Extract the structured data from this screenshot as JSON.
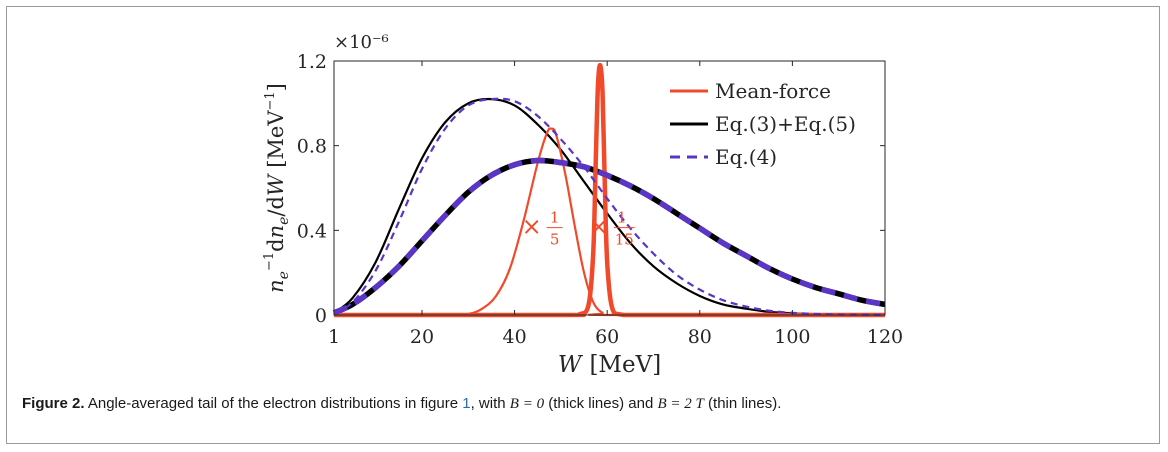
{
  "chart_data": {
    "type": "line",
    "xlabel_var": "W",
    "xlabel_unit": "[MeV]",
    "ylabel_text": "n_e^{-1} dn_e/dW [MeV^{-1}]",
    "yexponent": "×10⁻⁶",
    "xlim": [
      1,
      120
    ],
    "ylim": [
      0,
      1.2
    ],
    "xticks": [
      1,
      20,
      40,
      60,
      80,
      100,
      120
    ],
    "yticks": [
      0,
      0.4,
      0.8,
      1.2
    ],
    "legend": {
      "placement": "top-right",
      "entries": [
        "Mean-force",
        "Eq.(3)+Eq.(5)",
        "Eq.(4)"
      ]
    },
    "annotations": [
      {
        "text": "×",
        "num": "1",
        "den": "5",
        "x": 48,
        "y": 0.38,
        "color": "#f04a2a"
      },
      {
        "text": "×",
        "num": "1",
        "den": "15",
        "x": 62.5,
        "y": 0.38,
        "color": "#f04a2a"
      }
    ],
    "colors": {
      "mean_force": "#f04a2a",
      "eq35": "#000000",
      "eq4": "#5a35c6"
    },
    "x": [
      1,
      5,
      10,
      15,
      20,
      25,
      30,
      35,
      40,
      45,
      50,
      55,
      60,
      65,
      70,
      75,
      80,
      85,
      90,
      95,
      100,
      105,
      110,
      115,
      120
    ],
    "series": [
      {
        "name": "Eq.(3)+Eq.(5)",
        "condition": "B = 0",
        "width": "thick",
        "values": [
          0.01,
          0.05,
          0.13,
          0.23,
          0.35,
          0.47,
          0.58,
          0.66,
          0.71,
          0.73,
          0.72,
          0.7,
          0.66,
          0.61,
          0.55,
          0.48,
          0.41,
          0.34,
          0.28,
          0.22,
          0.17,
          0.13,
          0.1,
          0.07,
          0.05
        ]
      },
      {
        "name": "Eq.(4)",
        "condition": "B = 0",
        "width": "thick",
        "values": [
          0.01,
          0.05,
          0.13,
          0.23,
          0.35,
          0.47,
          0.58,
          0.66,
          0.71,
          0.73,
          0.72,
          0.7,
          0.66,
          0.61,
          0.55,
          0.48,
          0.41,
          0.34,
          0.28,
          0.22,
          0.17,
          0.13,
          0.1,
          0.07,
          0.05
        ]
      },
      {
        "name": "Eq.(3)+Eq.(5)",
        "condition": "B = 2 T",
        "width": "thin",
        "values": [
          0.01,
          0.08,
          0.25,
          0.5,
          0.74,
          0.91,
          1.0,
          1.02,
          0.99,
          0.9,
          0.78,
          0.63,
          0.48,
          0.34,
          0.23,
          0.15,
          0.09,
          0.05,
          0.03,
          0.015,
          0.008,
          0.004,
          0.002,
          0.001,
          0
        ]
      },
      {
        "name": "Eq.(4)",
        "condition": "B = 2 T",
        "width": "thin",
        "values": [
          0.01,
          0.06,
          0.21,
          0.44,
          0.69,
          0.88,
          0.99,
          1.02,
          1.01,
          0.94,
          0.83,
          0.7,
          0.55,
          0.41,
          0.29,
          0.19,
          0.12,
          0.07,
          0.04,
          0.02,
          0.01,
          0.005,
          0.002,
          0.001,
          0
        ]
      },
      {
        "name": "Mean-force",
        "condition": "B = 0 (×1/15)",
        "width": "thick",
        "x": [
          1,
          50,
          54,
          56,
          57,
          57.5,
          58,
          58.5,
          59,
          59.5,
          60,
          61,
          63,
          70,
          120
        ],
        "values": [
          0,
          0,
          0.003,
          0.05,
          0.3,
          0.7,
          1.08,
          1.18,
          1.05,
          0.6,
          0.25,
          0.04,
          0.002,
          0,
          0
        ]
      },
      {
        "name": "Mean-force",
        "condition": "B = 2 T (×1/5)",
        "width": "thin",
        "x": [
          1,
          25,
          30,
          33,
          36,
          39,
          42,
          45,
          47,
          48,
          49,
          51,
          53,
          55,
          57,
          59,
          61,
          120
        ],
        "values": [
          0,
          0,
          0.005,
          0.03,
          0.09,
          0.22,
          0.45,
          0.72,
          0.86,
          0.88,
          0.85,
          0.66,
          0.42,
          0.2,
          0.06,
          0.01,
          0,
          0
        ]
      }
    ]
  },
  "caption": {
    "label": "Figure 2.",
    "text_before": " Angle-averaged tail of the electron distributions in figure ",
    "ref": "1",
    "text_mid": ", with ",
    "b0": "B = 0",
    "text_thick": " (thick lines) and ",
    "b2": "B = 2  T",
    "text_thin": " (thin lines)."
  }
}
